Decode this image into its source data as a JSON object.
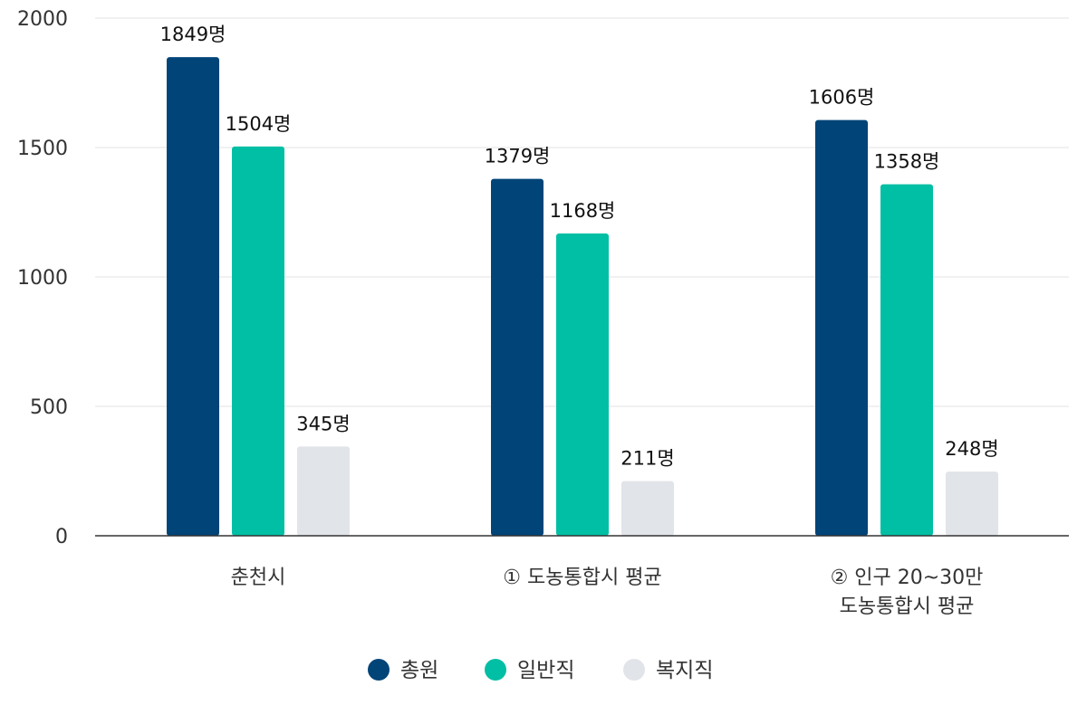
{
  "chart_data": {
    "type": "bar",
    "categories": [
      [
        "춘천시"
      ],
      [
        "① 도농통합시 평균"
      ],
      [
        "② 인구 20~30만",
        "도농통합시 평균"
      ]
    ],
    "series": [
      {
        "name": "총원",
        "color": "#004478",
        "values": [
          1849,
          1379,
          1606
        ],
        "labels": [
          "1849명",
          "1379명",
          "1606명"
        ]
      },
      {
        "name": "일반직",
        "color": "#00BFA5",
        "values": [
          1504,
          1168,
          1358
        ],
        "labels": [
          "1504명",
          "1168명",
          "1358명"
        ]
      },
      {
        "name": "복지직",
        "color": "#E1E4E8",
        "values": [
          345,
          211,
          248
        ],
        "labels": [
          "345명",
          "211명",
          "248명"
        ]
      }
    ],
    "yticks": [
      0,
      500,
      1000,
      1500,
      2000
    ],
    "ylim": [
      0,
      2000
    ],
    "grid": true,
    "legend_position": "bottom-center",
    "title": "",
    "xlabel": "",
    "ylabel": ""
  }
}
